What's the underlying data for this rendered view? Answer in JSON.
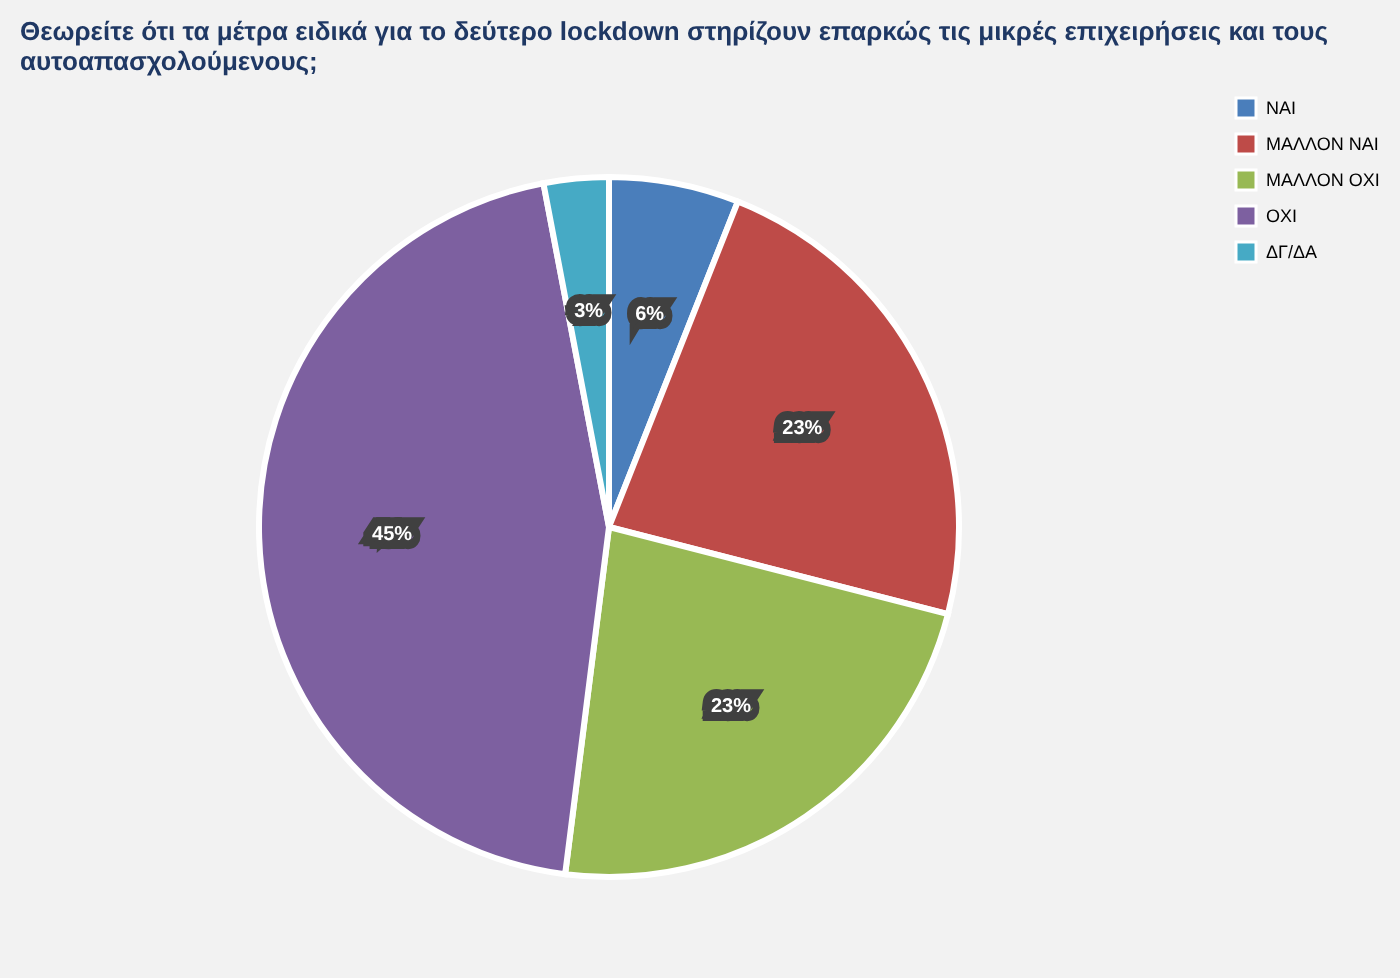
{
  "chart_data": {
    "type": "pie",
    "title": "Θεωρείτε ότι τα μέτρα ειδικά για το δεύτερο lockdown στηρίζουν επαρκώς τις μικρές επιχειρήσεις και τους αυτοαπασχολούμενους;",
    "categories": [
      "ΝΑΙ",
      "ΜΑΛΛΟΝ ΝΑΙ",
      "ΜΑΛΛΟΝ ΟΧΙ",
      "ΟΧΙ",
      "ΔΓ/ΔΑ"
    ],
    "values": [
      6,
      23,
      23,
      45,
      3
    ],
    "colors": [
      "#4a7ebb",
      "#be4b48",
      "#98b954",
      "#7d60a0",
      "#46aac5"
    ],
    "value_labels": [
      "6%",
      "23%",
      "23%",
      "45%",
      "3%"
    ],
    "legend": "right"
  }
}
